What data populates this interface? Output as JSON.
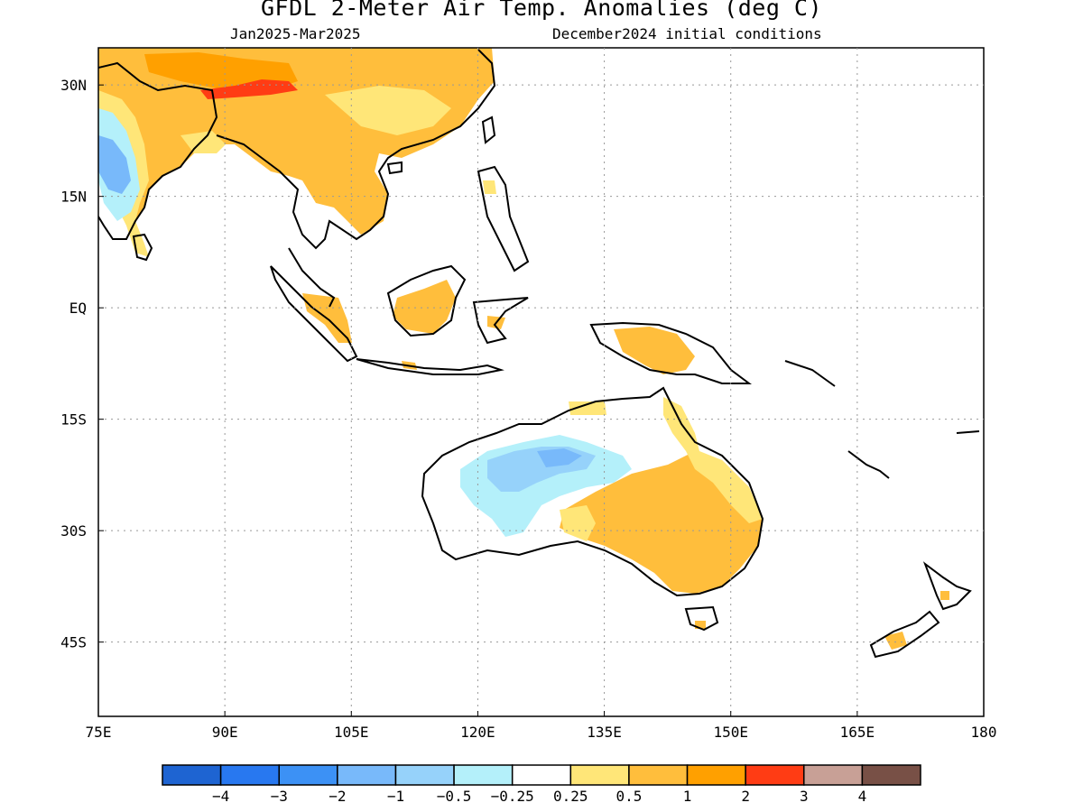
{
  "title": "GFDL 2-Meter Air Temp. Anomalies (deg C)",
  "period": "Jan2025-Mar2025",
  "initial_conditions": "December2024 initial conditions",
  "map": {
    "lon_range": [
      75,
      180
    ],
    "lat_range": [
      -55,
      35
    ],
    "lon_ticks": [
      {
        "value": 75,
        "label": "75E"
      },
      {
        "value": 90,
        "label": "90E"
      },
      {
        "value": 105,
        "label": "105E"
      },
      {
        "value": 120,
        "label": "120E"
      },
      {
        "value": 135,
        "label": "135E"
      },
      {
        "value": 150,
        "label": "150E"
      },
      {
        "value": 165,
        "label": "165E"
      },
      {
        "value": 180,
        "label": "180"
      }
    ],
    "lat_ticks": [
      {
        "value": 30,
        "label": "30N"
      },
      {
        "value": 15,
        "label": "15N"
      },
      {
        "value": 0,
        "label": "EQ"
      },
      {
        "value": -15,
        "label": "15S"
      },
      {
        "value": -30,
        "label": "30S"
      },
      {
        "value": -45,
        "label": "45S"
      }
    ],
    "grid": true
  },
  "colorbar": {
    "colors": [
      "#1e64d2",
      "#2878f0",
      "#3c91f5",
      "#78b9fa",
      "#96d2fa",
      "#b4f0fa",
      "#ffffff",
      "#ffe678",
      "#ffbe3c",
      "#ffa000",
      "#ff3c14",
      "#c8a096",
      "#785046"
    ],
    "labels": [
      "-4",
      "-3",
      "-2",
      "-1",
      "-0.5",
      "-0.25",
      "0.25",
      "0.5",
      "1",
      "2",
      "3",
      "4"
    ]
  },
  "colors": {
    "warm_light": "#ffe678",
    "warm": "#ffbe3c",
    "warm_strong": "#ffa000",
    "hot": "#ff3c14",
    "cool_light": "#b4f0fa",
    "cool": "#96d2fa",
    "cool_mid": "#78b9fa"
  }
}
